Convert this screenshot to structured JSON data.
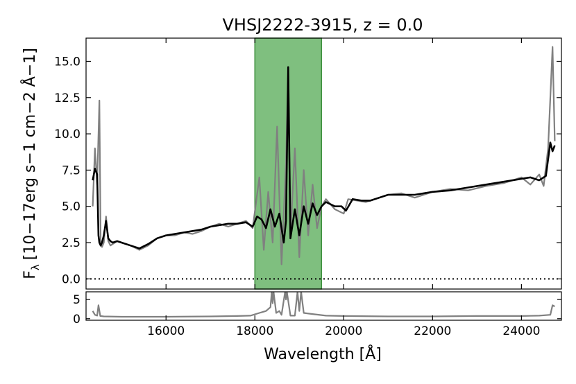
{
  "chart_data": {
    "type": "line",
    "title": "VHSJ2222-3915, z = 0.0",
    "xlabel": "Wavelength [Å]",
    "ylabel_main": "F",
    "ylabel_sub": "λ",
    "ylabel_units": "[10−17erg s−1 cm−2 Å−1]",
    "xlim": [
      14200,
      24900
    ],
    "ylim": [
      -0.7,
      16.6
    ],
    "residual_ylim": [
      -0.4,
      7.0
    ],
    "x_ticks": [
      16000,
      18000,
      20000,
      22000,
      24000
    ],
    "x_tick_labels": [
      "16000",
      "18000",
      "20000",
      "22000",
      "24000"
    ],
    "y_ticks": [
      0.0,
      2.5,
      5.0,
      7.5,
      10.0,
      12.5,
      15.0
    ],
    "y_tick_labels": [
      "0.0",
      "2.5",
      "5.0",
      "7.5",
      "10.0",
      "12.5",
      "15.0"
    ],
    "residual_ticks": [
      0,
      5
    ],
    "residual_tick_labels": [
      "0",
      "5"
    ],
    "masked_region": {
      "x_start": 18000,
      "x_end": 19500,
      "color": "#7fbf7f"
    },
    "zero_line": 0.0,
    "series": [
      {
        "role": "observed",
        "color": "#808080",
        "x": [
          14350,
          14400,
          14450,
          14500,
          14530,
          14560,
          14600,
          14650,
          14700,
          14750,
          14800,
          14900,
          15000,
          15200,
          15400,
          15600,
          15800,
          16000,
          16200,
          16400,
          16600,
          16800,
          17000,
          17200,
          17400,
          17600,
          17800,
          17950,
          18100,
          18200,
          18300,
          18400,
          18500,
          18600,
          18700,
          18750,
          18800,
          18900,
          19000,
          19100,
          19200,
          19300,
          19400,
          19500,
          19600,
          19800,
          20000,
          20100,
          20300,
          20500,
          20800,
          21000,
          21300,
          21600,
          22000,
          22400,
          22800,
          23200,
          23600,
          24000,
          24200,
          24400,
          24500,
          24600,
          24700,
          24750
        ],
        "y": [
          5.0,
          9.0,
          6.5,
          12.3,
          2.3,
          2.2,
          2.5,
          4.3,
          2.6,
          2.3,
          2.4,
          2.6,
          2.5,
          2.3,
          2.0,
          2.3,
          2.8,
          3.0,
          3.0,
          3.2,
          3.1,
          3.3,
          3.6,
          3.8,
          3.6,
          3.8,
          4.0,
          3.5,
          7.0,
          2.0,
          6.0,
          2.5,
          10.5,
          1.0,
          8.0,
          14.5,
          3.0,
          9.0,
          1.5,
          7.5,
          3.0,
          6.5,
          3.5,
          5.0,
          5.5,
          4.8,
          4.5,
          5.5,
          5.4,
          5.3,
          5.6,
          5.8,
          5.9,
          5.6,
          6.0,
          6.2,
          6.1,
          6.4,
          6.6,
          7.0,
          6.5,
          7.2,
          6.4,
          9.0,
          16.0,
          9.5
        ]
      },
      {
        "role": "model",
        "color": "#000000",
        "x": [
          14350,
          14400,
          14450,
          14480,
          14500,
          14530,
          14560,
          14600,
          14650,
          14700,
          14750,
          14800,
          14900,
          15000,
          15200,
          15400,
          15600,
          15800,
          16000,
          16200,
          16400,
          16600,
          16800,
          17000,
          17200,
          17400,
          17600,
          17800,
          17950,
          18050,
          18150,
          18250,
          18350,
          18450,
          18550,
          18650,
          18700,
          18750,
          18800,
          18900,
          19000,
          19100,
          19200,
          19300,
          19400,
          19500,
          19600,
          19800,
          19950,
          20050,
          20200,
          20400,
          20600,
          20800,
          21000,
          21300,
          21600,
          22000,
          22400,
          22800,
          23200,
          23600,
          24000,
          24200,
          24400,
          24550,
          24650,
          24700,
          24750
        ],
        "y": [
          6.8,
          7.6,
          7.2,
          3.0,
          2.5,
          2.3,
          2.5,
          3.0,
          4.0,
          2.8,
          2.6,
          2.5,
          2.6,
          2.5,
          2.3,
          2.1,
          2.4,
          2.8,
          3.0,
          3.1,
          3.2,
          3.3,
          3.4,
          3.6,
          3.7,
          3.8,
          3.8,
          3.9,
          3.6,
          4.3,
          4.1,
          3.5,
          4.8,
          3.6,
          4.5,
          2.5,
          4.0,
          14.6,
          2.8,
          4.8,
          3.0,
          5.0,
          3.8,
          5.2,
          4.4,
          5.0,
          5.3,
          5.0,
          5.0,
          4.7,
          5.5,
          5.4,
          5.4,
          5.6,
          5.8,
          5.8,
          5.8,
          6.0,
          6.1,
          6.3,
          6.5,
          6.7,
          6.9,
          7.0,
          6.8,
          7.1,
          9.4,
          8.8,
          9.2
        ]
      },
      {
        "role": "residual",
        "color": "#808080",
        "x": [
          14350,
          14400,
          14450,
          14480,
          14520,
          14600,
          15000,
          16000,
          17000,
          17600,
          17900,
          18100,
          18250,
          18350,
          18380,
          18400,
          18420,
          18480,
          18550,
          18600,
          18680,
          18700,
          18720,
          18800,
          18900,
          18960,
          19000,
          19040,
          19100,
          19300,
          19600,
          20000,
          21000,
          22000,
          23000,
          24000,
          24400,
          24650,
          24700,
          24750
        ],
        "y": [
          2.0,
          1.0,
          0.8,
          3.5,
          0.7,
          0.6,
          0.5,
          0.5,
          0.6,
          0.7,
          0.8,
          1.5,
          2.0,
          3.0,
          7.0,
          4.0,
          7.0,
          1.5,
          2.0,
          1.0,
          7.0,
          5.0,
          7.0,
          0.8,
          0.8,
          7.0,
          2.0,
          7.0,
          1.5,
          1.2,
          0.8,
          0.7,
          0.6,
          0.6,
          0.7,
          0.7,
          0.8,
          1.0,
          3.5,
          3.2
        ]
      }
    ]
  }
}
